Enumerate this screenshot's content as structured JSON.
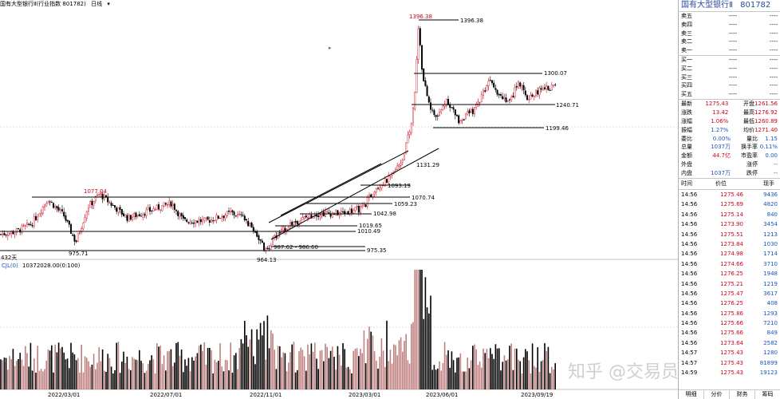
{
  "header": {
    "title": "国有大型银行Ⅱ(行业指数 801782)",
    "period": "日线",
    "dropdown": "▾"
  },
  "sub_header": {
    "scale_label": "432天",
    "vol_label": "CJL(0)",
    "vol_value": "10372028.00(0:100)"
  },
  "x_labels": [
    "2022/03/01",
    "2022/07/01",
    "2022/11/01",
    "2023/03/01",
    "2023/06/01",
    "2023/09/19"
  ],
  "annotations": {
    "high_peak": "1396.38",
    "high_line": "1396.38",
    "l1300": "1300.07",
    "l1240": "1240.71",
    "l1199": "1199.46",
    "l1131": "1131.29",
    "l1093": "1093.19",
    "l1070": "1070.74",
    "l1059": "1059.23",
    "l1042": "1042.98",
    "l1019": "1019.65",
    "l1010": "1010.49",
    "l987": "987.62 - 986.60",
    "l975": "975.35",
    "low1": "975.71",
    "low2": "964.13",
    "peak_left": "1077.04"
  },
  "chart_data": {
    "type": "candlestick",
    "title": "国有大型银行Ⅱ",
    "xlabel": "",
    "ylabel": "",
    "x_tick_labels": [
      "2022/03/01",
      "2022/07/01",
      "2022/11/01",
      "2023/03/01",
      "2023/06/01",
      "2023/09/19"
    ],
    "price_levels": [
      1396.38,
      1300.07,
      1240.71,
      1199.46,
      1131.29,
      1093.19,
      1070.74,
      1059.23,
      1042.98,
      1019.65,
      1010.49,
      987.62,
      986.6,
      975.35,
      975.71,
      964.13,
      1077.04
    ],
    "key_points": [
      {
        "label": "1077.04",
        "value": 1077.04
      },
      {
        "label": "975.71",
        "value": 975.71
      },
      {
        "label": "964.13",
        "value": 964.13
      },
      {
        "label": "1396.38",
        "value": 1396.38
      }
    ]
  },
  "sidebar": {
    "title": "国有大型银行Ⅱ",
    "code": "801782",
    "orderbook": [
      {
        "label": "卖五",
        "price": "----",
        "vol": "----"
      },
      {
        "label": "卖四",
        "price": "----",
        "vol": "----"
      },
      {
        "label": "卖三",
        "price": "----",
        "vol": "----"
      },
      {
        "label": "卖二",
        "price": "----",
        "vol": "----"
      },
      {
        "label": "卖一",
        "price": "----",
        "vol": "----"
      },
      {
        "label": "买一",
        "price": "----",
        "vol": "----"
      },
      {
        "label": "买二",
        "price": "----",
        "vol": "----"
      },
      {
        "label": "买三",
        "price": "----",
        "vol": "----"
      },
      {
        "label": "买四",
        "price": "----",
        "vol": "----"
      },
      {
        "label": "买五",
        "price": "----",
        "vol": "----"
      }
    ],
    "quote": [
      {
        "k1": "最新",
        "v1": "1275.43",
        "c1": "red",
        "k2": "开盘",
        "v2": "1261.56",
        "c2": "red"
      },
      {
        "k1": "涨跌",
        "v1": "13.42",
        "c1": "red",
        "k2": "最高",
        "v2": "1276.92",
        "c2": "red"
      },
      {
        "k1": "涨幅",
        "v1": "1.06%",
        "c1": "red",
        "k2": "最低",
        "v2": "1260.89",
        "c2": "red"
      },
      {
        "k1": "振幅",
        "v1": "1.27%",
        "c1": "blue",
        "k2": "均价",
        "v2": "1271.40",
        "c2": "red"
      },
      {
        "k1": "委比",
        "v1": "0.00%",
        "c1": "blue",
        "k2": "量比",
        "v2": "1.15",
        "c2": "blue"
      },
      {
        "k1": "总量",
        "v1": "1037万",
        "c1": "blue",
        "k2": "换手率",
        "v2": "0.11%",
        "c2": "blue"
      },
      {
        "k1": "金额",
        "v1": "44.7亿",
        "c1": "red",
        "k2": "市盈率",
        "v2": "0.00",
        "c2": "blue"
      },
      {
        "k1": "外盘",
        "v1": "",
        "c1": "blue",
        "k2": "涨停",
        "v2": "--",
        "c2": "blue"
      },
      {
        "k1": "内盘",
        "v1": "1037万",
        "c1": "blue",
        "k2": "跌停",
        "v2": "--",
        "c2": "blue"
      }
    ],
    "ticks_header": {
      "time": "时间",
      "price": "价位",
      "vol": "现手"
    },
    "ticks": [
      {
        "time": "14:56",
        "price": "1275.46",
        "vol": "9436"
      },
      {
        "time": "14:56",
        "price": "1275.69",
        "vol": "4820"
      },
      {
        "time": "14:56",
        "price": "1275.14",
        "vol": "840"
      },
      {
        "time": "14:56",
        "price": "1273.90",
        "vol": "3454"
      },
      {
        "time": "14:56",
        "price": "1275.51",
        "vol": "1213"
      },
      {
        "time": "14:56",
        "price": "1273.84",
        "vol": "1030"
      },
      {
        "time": "14:56",
        "price": "1274.98",
        "vol": "1714"
      },
      {
        "time": "14:56",
        "price": "1274.66",
        "vol": "3710"
      },
      {
        "time": "14:56",
        "price": "1276.25",
        "vol": "1948"
      },
      {
        "time": "14:56",
        "price": "1275.21",
        "vol": "1219"
      },
      {
        "time": "14:56",
        "price": "1275.47",
        "vol": "3617"
      },
      {
        "time": "14:56",
        "price": "1276.25",
        "vol": "408"
      },
      {
        "time": "14:56",
        "price": "1275.86",
        "vol": "1293"
      },
      {
        "time": "14:56",
        "price": "1275.66",
        "vol": "7210"
      },
      {
        "time": "14:56",
        "price": "1275.66",
        "vol": "849"
      },
      {
        "time": "14:56",
        "price": "1273.64",
        "vol": "2582"
      },
      {
        "time": "14:57",
        "price": "1275.43",
        "vol": "1280"
      },
      {
        "time": "14:57",
        "price": "1275.43",
        "vol": "81899"
      },
      {
        "time": "14:59",
        "price": "1275.43",
        "vol": "19123"
      }
    ],
    "tabs": [
      "明细",
      "分价",
      "财务",
      "筹码"
    ]
  },
  "watermark": "知乎 @交易员云起",
  "colors": {
    "up": "#d0021b",
    "down": "#000000",
    "vol_up": "#c08080",
    "vol_down": "#000000",
    "accent": "#2a4aa0"
  }
}
